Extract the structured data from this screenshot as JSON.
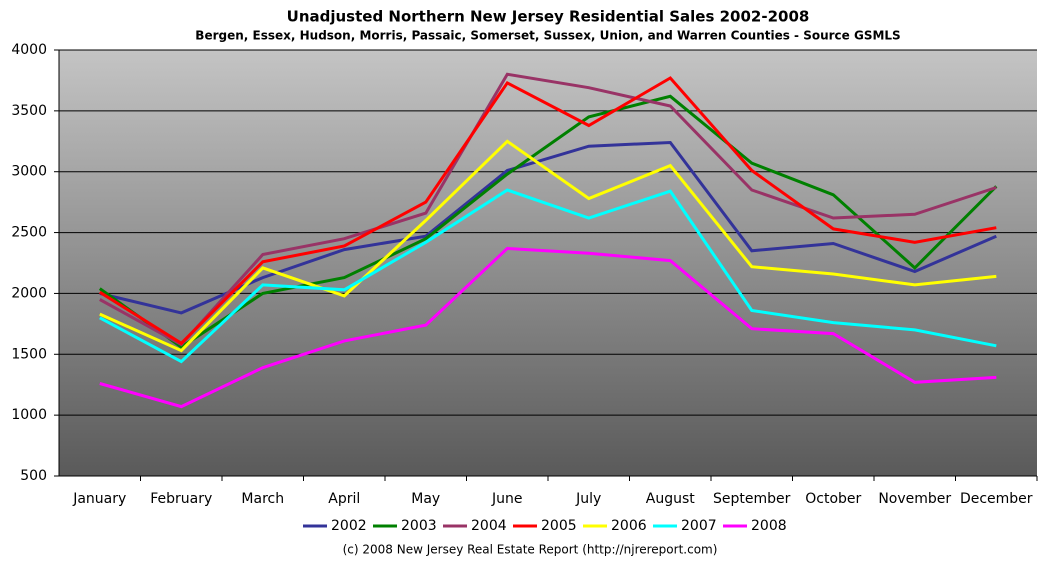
{
  "chart_data": {
    "type": "line",
    "title": "Unadjusted Northern New Jersey Residential Sales 2002-2008",
    "subtitle": "Bergen, Essex, Hudson, Morris, Passaic, Somerset, Sussex, Union, and Warren Counties - Source GSMLS",
    "note": "(c) 2008 New Jersey Real Estate Report (http://njrereport.com)",
    "categories": [
      "January",
      "February",
      "March",
      "April",
      "May",
      "June",
      "July",
      "August",
      "September",
      "October",
      "November",
      "December"
    ],
    "series": [
      {
        "name": "2002",
        "color": "#333399",
        "values": [
          2000,
          1840,
          2130,
          2360,
          2470,
          3010,
          3210,
          3240,
          2350,
          2410,
          2180,
          2470
        ]
      },
      {
        "name": "2003",
        "color": "#008000",
        "values": [
          2040,
          1560,
          2000,
          2130,
          2450,
          2980,
          3450,
          3620,
          3070,
          2810,
          2210,
          2880
        ]
      },
      {
        "name": "2004",
        "color": "#993366",
        "values": [
          1950,
          1580,
          2320,
          2450,
          2660,
          3800,
          3690,
          3540,
          2850,
          2620,
          2650,
          2870
        ]
      },
      {
        "name": "2005",
        "color": "#ff0000",
        "values": [
          2010,
          1590,
          2260,
          2390,
          2750,
          3730,
          3380,
          3770,
          3010,
          2530,
          2420,
          2540
        ]
      },
      {
        "name": "2006",
        "color": "#ffff00",
        "values": [
          1830,
          1530,
          2210,
          1980,
          2600,
          3250,
          2780,
          3050,
          2220,
          2160,
          2070,
          2140
        ]
      },
      {
        "name": "2007",
        "color": "#00ffff",
        "values": [
          1800,
          1440,
          2070,
          2030,
          2420,
          2850,
          2620,
          2840,
          1860,
          1760,
          1700,
          1570
        ]
      },
      {
        "name": "2008",
        "color": "#ff00ff",
        "values": [
          1260,
          1070,
          1390,
          1610,
          1740,
          2370,
          2330,
          2270,
          1710,
          1670,
          1270,
          1310
        ]
      }
    ],
    "ylim": [
      500,
      4000
    ],
    "yticks": [
      500,
      1000,
      1500,
      2000,
      2500,
      3000,
      3500,
      4000
    ],
    "grid": true
  }
}
